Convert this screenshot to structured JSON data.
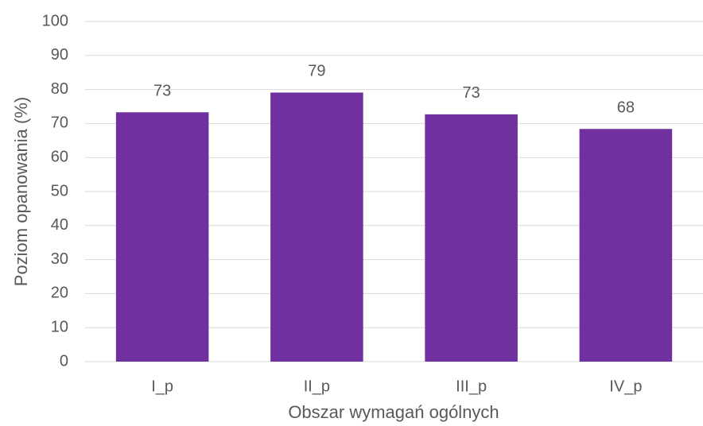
{
  "chart_data": {
    "type": "bar",
    "x_label": "Obszar wymagań ogólnych",
    "y_label": "Poziom opanowania (%)",
    "categories": [
      "I_p",
      "II_p",
      "III_p",
      "IV_p"
    ],
    "values": [
      73.3,
      79.1,
      72.7,
      68.4
    ],
    "value_labels": [
      "73",
      "79",
      "73",
      "68"
    ],
    "color": "#7030a0",
    "ylim": [
      0,
      100
    ],
    "yticks": [
      0,
      10,
      20,
      30,
      40,
      50,
      60,
      70,
      80,
      90,
      100
    ],
    "grid": true
  }
}
